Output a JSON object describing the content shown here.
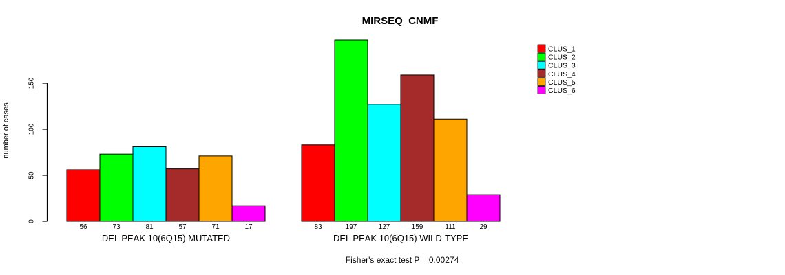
{
  "chart_data": {
    "type": "bar",
    "title": "MIRSEQ_CNMF",
    "xlabel": "",
    "ylabel": "number of cases",
    "yticks": [
      0,
      50,
      100,
      150
    ],
    "ylim": [
      0,
      200
    ],
    "grid": false,
    "legend_position": "right",
    "series_names": [
      "CLUS_1",
      "CLUS_2",
      "CLUS_3",
      "CLUS_4",
      "CLUS_5",
      "CLUS_6"
    ],
    "series_colors": [
      "#FF0000",
      "#00FF00",
      "#00FFFF",
      "#A52A2A",
      "#FFA500",
      "#FF00FF"
    ],
    "groups": [
      {
        "label": "DEL PEAK 10(6Q15) MUTATED",
        "values": [
          56,
          73,
          81,
          57,
          71,
          17
        ]
      },
      {
        "label": "DEL PEAK 10(6Q15) WILD-TYPE",
        "values": [
          83,
          197,
          127,
          159,
          111,
          29
        ]
      }
    ],
    "bar_value_labels": [
      [
        56,
        73,
        81,
        57,
        71,
        17
      ],
      [
        83,
        197,
        127,
        159,
        111,
        29
      ]
    ],
    "annotation": "Fisher's exact test P = 0.00274"
  }
}
